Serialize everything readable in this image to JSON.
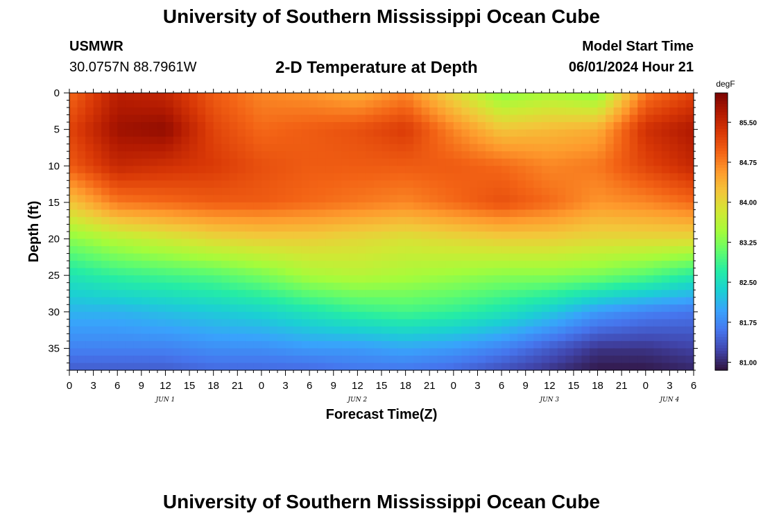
{
  "header": {
    "title": "University of Southern Mississippi Ocean Cube",
    "station": "USMWR",
    "coords": "30.0757N  88.7961W",
    "plot_title": "2-D Temperature at Depth",
    "model_label": "Model Start Time",
    "model_time": "06/01/2024 Hour 21"
  },
  "footer": {
    "title": "University of Southern Mississippi Ocean Cube"
  },
  "chart_data": {
    "type": "heatmap",
    "title": "2-D Temperature at Depth",
    "xlabel": "Forecast Time(Z)",
    "ylabel": "Depth (ft)",
    "units": "degF",
    "x_hours_range": [
      0,
      78
    ],
    "ylim": [
      0,
      38
    ],
    "y_ticks": [
      0,
      5,
      10,
      15,
      20,
      25,
      30,
      35
    ],
    "x_tick_labels": [
      "0",
      "3",
      "6",
      "9",
      "12",
      "15",
      "18",
      "21",
      "0",
      "3",
      "6",
      "9",
      "12",
      "15",
      "18",
      "21",
      "0",
      "3",
      "6",
      "9",
      "12",
      "15",
      "18",
      "21",
      "0",
      "3",
      "6"
    ],
    "day_labels": [
      {
        "label": "JUN 1",
        "hour": 12
      },
      {
        "label": "JUN 2",
        "hour": 36
      },
      {
        "label": "JUN 3",
        "hour": 60
      },
      {
        "label": "JUN 4",
        "hour": 75
      }
    ],
    "colorbar": {
      "min": 80.85,
      "max": 86.05,
      "ticks": [
        "85.50",
        "84.75",
        "84.00",
        "83.25",
        "82.50",
        "81.75",
        "81.00"
      ],
      "colors": [
        "#30123b",
        "#4145ab",
        "#4675ed",
        "#39a2fc",
        "#1bcfd4",
        "#24eca6",
        "#61fc6c",
        "#a4fc3b",
        "#d1e834",
        "#f3c63a",
        "#fe9b2d",
        "#f36315",
        "#d93806",
        "#b11901",
        "#7a0402"
      ]
    },
    "depth_profile_description": "warm surface layer (~85-85.9 F) over 0-15 ft, transitioning through 84-83 F near 18-22 ft to cool water ~81-82 F below 30 ft",
    "grid_hours": [
      0,
      6,
      12,
      18,
      24,
      30,
      36,
      42,
      48,
      54,
      60,
      66,
      72,
      78
    ],
    "grid_depths": [
      0,
      5,
      10,
      15,
      20,
      25,
      30,
      35,
      38
    ],
    "temperature_grid": [
      [
        84.9,
        85.6,
        85.5,
        85.0,
        84.7,
        84.6,
        84.4,
        84.7,
        84.0,
        83.3,
        83.5,
        83.3,
        84.8,
        85.2
      ],
      [
        85.2,
        85.8,
        85.9,
        85.2,
        84.9,
        85.0,
        85.1,
        85.3,
        84.7,
        84.2,
        84.3,
        84.4,
        85.4,
        85.7
      ],
      [
        85.0,
        85.5,
        85.4,
        85.3,
        85.1,
        85.0,
        85.0,
        85.0,
        85.0,
        84.9,
        84.7,
        84.8,
        85.2,
        85.5
      ],
      [
        84.2,
        84.8,
        84.9,
        85.0,
        85.0,
        84.9,
        84.8,
        84.7,
        84.9,
        85.1,
        84.9,
        84.6,
        84.7,
        84.9
      ],
      [
        83.3,
        83.6,
        83.8,
        84.0,
        84.1,
        84.1,
        84.0,
        83.9,
        84.0,
        84.1,
        84.1,
        84.0,
        84.0,
        84.0
      ],
      [
        82.6,
        82.8,
        82.9,
        83.0,
        83.2,
        83.5,
        83.6,
        83.5,
        83.4,
        83.3,
        83.3,
        83.2,
        83.0,
        82.7
      ],
      [
        82.1,
        82.1,
        82.2,
        82.3,
        82.4,
        82.6,
        82.8,
        82.9,
        82.8,
        82.6,
        82.3,
        81.9,
        81.7,
        81.6
      ],
      [
        81.7,
        81.7,
        81.7,
        81.8,
        81.8,
        81.9,
        81.9,
        82.0,
        81.9,
        81.7,
        81.4,
        81.1,
        81.1,
        81.2
      ],
      [
        81.4,
        81.4,
        81.4,
        81.5,
        81.5,
        81.5,
        81.6,
        81.6,
        81.5,
        81.3,
        81.1,
        80.9,
        80.9,
        81.0
      ]
    ]
  }
}
